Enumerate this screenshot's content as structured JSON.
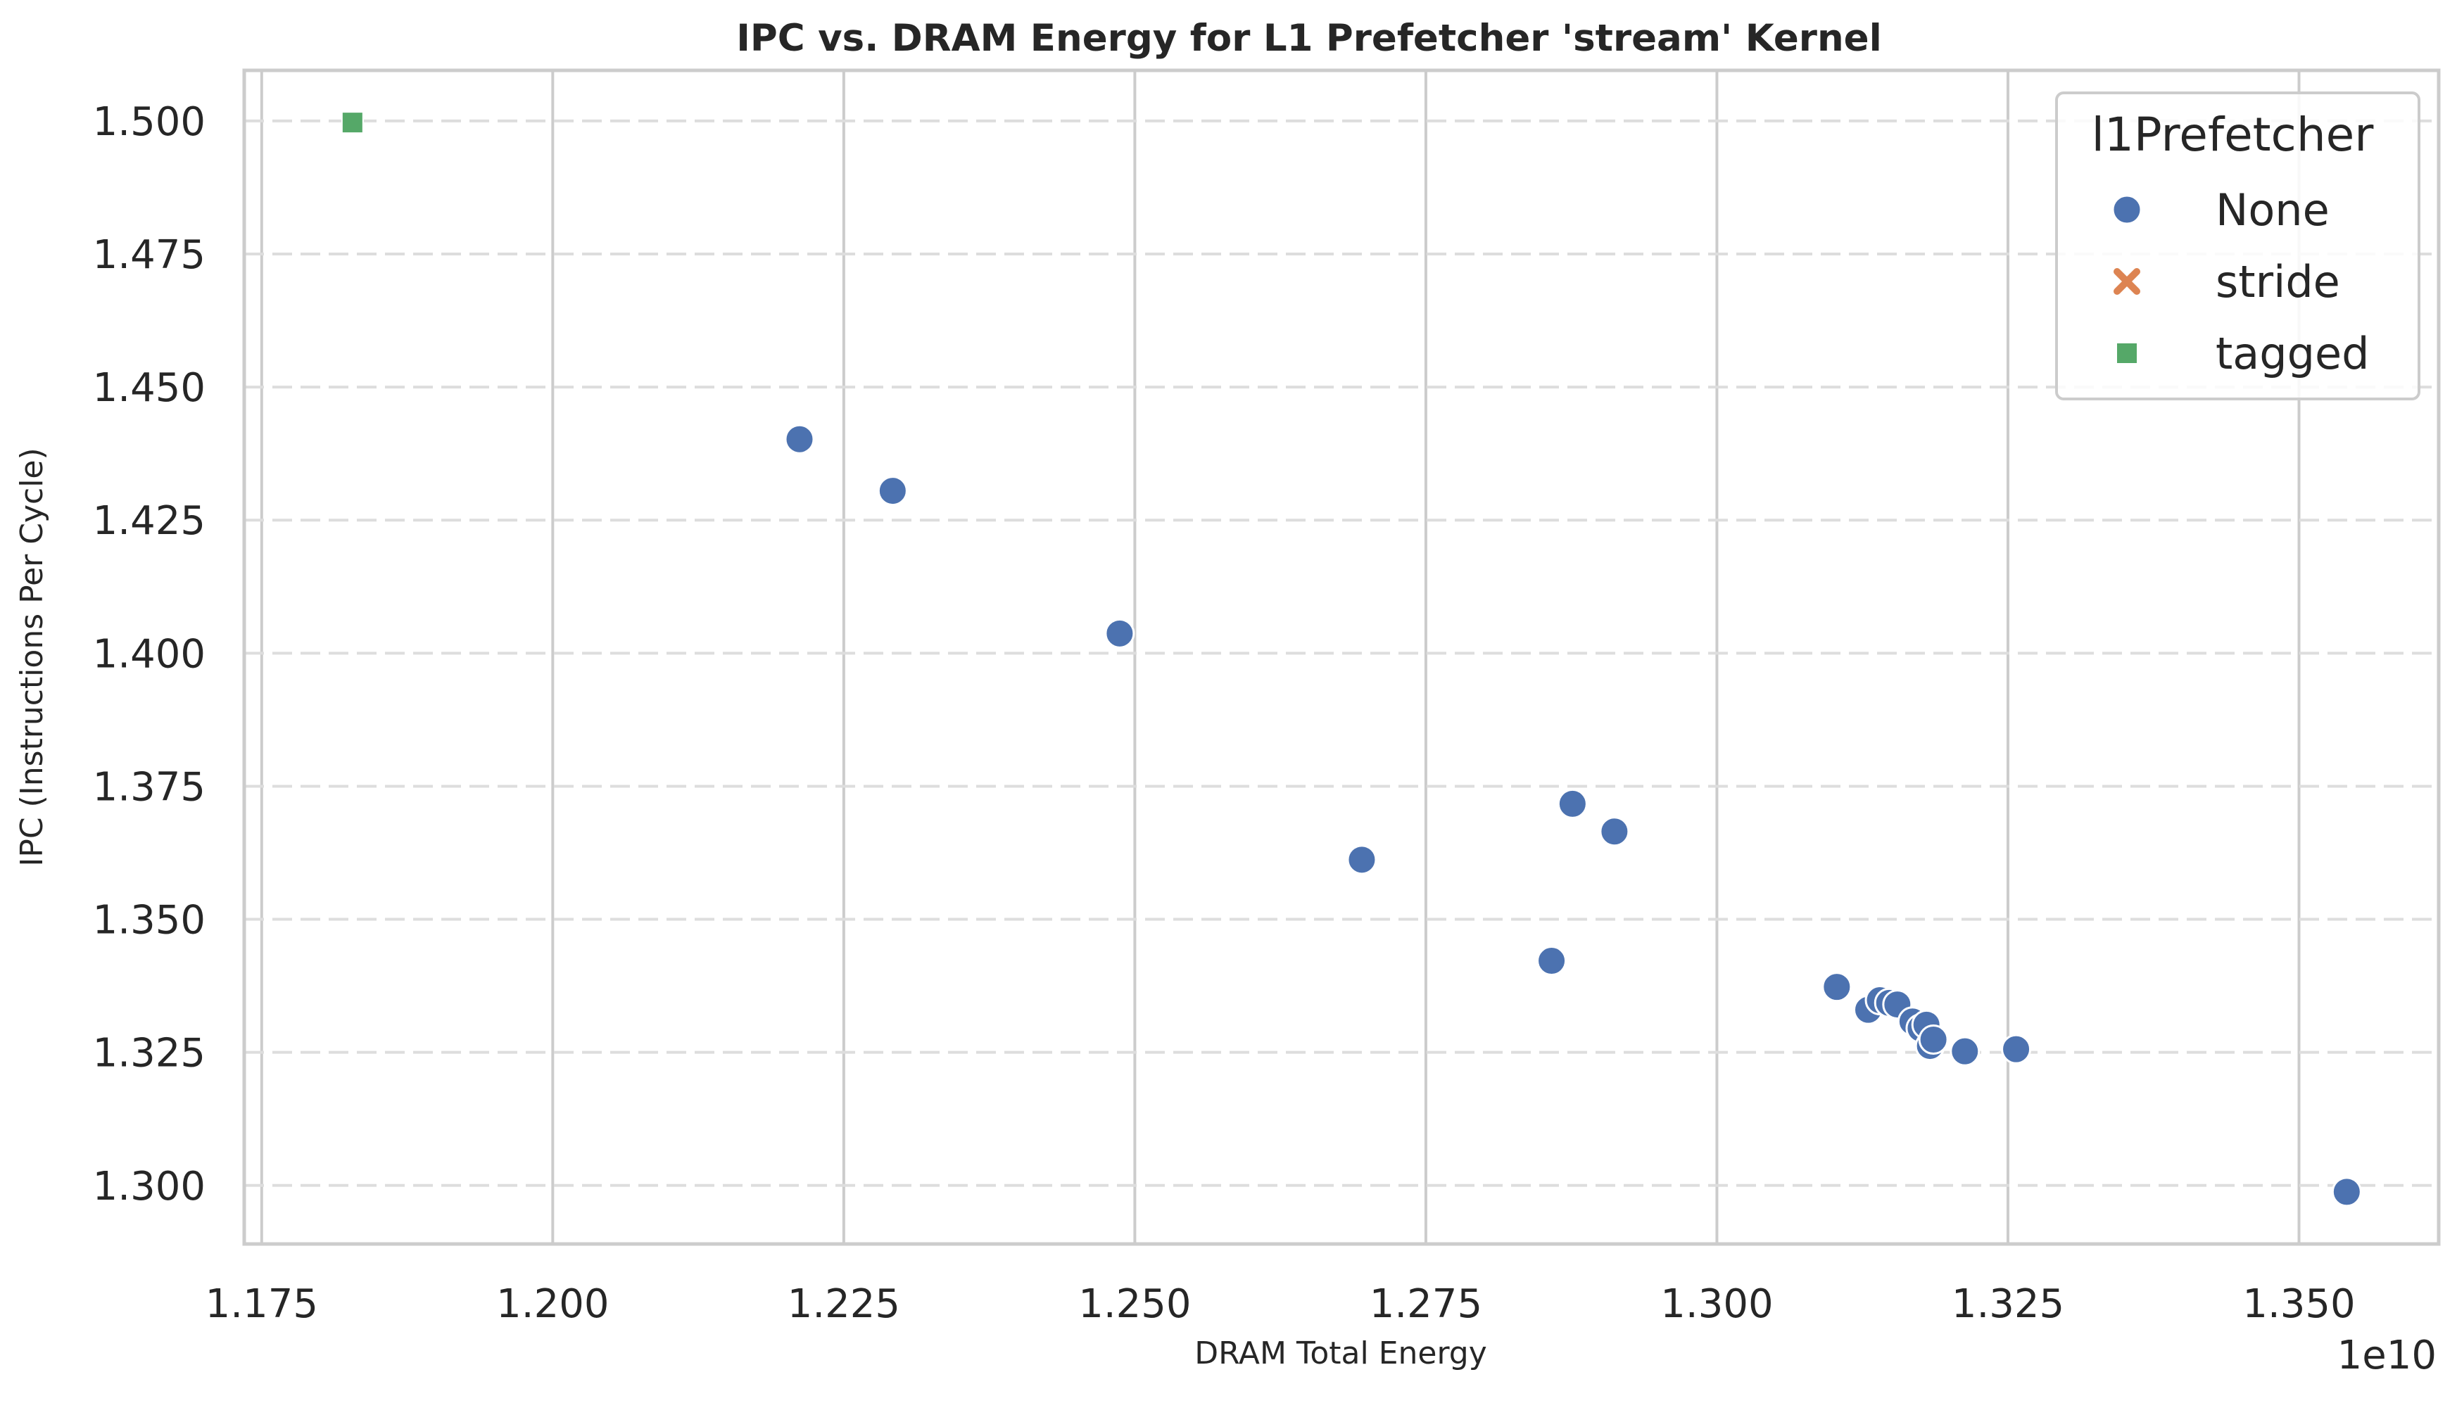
{
  "chart_data": {
    "type": "scatter",
    "title": "IPC vs. DRAM Energy for L1 Prefetcher 'stream' Kernel",
    "xlabel": "DRAM Total Energy",
    "ylabel": "IPC (Instructions Per Cycle)",
    "x_offset_label": "1e10",
    "x_scale": 10000000000,
    "xlim": [
      1.1735,
      1.362
    ],
    "ylim": [
      1.289,
      1.5095
    ],
    "x_ticks": [
      1.175,
      1.2,
      1.225,
      1.25,
      1.275,
      1.3,
      1.325,
      1.35
    ],
    "x_tick_labels": [
      "1.175",
      "1.200",
      "1.225",
      "1.250",
      "1.275",
      "1.300",
      "1.325",
      "1.350"
    ],
    "y_ticks": [
      1.3,
      1.325,
      1.35,
      1.375,
      1.4,
      1.425,
      1.45,
      1.475,
      1.5
    ],
    "y_tick_labels": [
      "1.300",
      "1.325",
      "1.350",
      "1.375",
      "1.400",
      "1.425",
      "1.450",
      "1.475",
      "1.500"
    ],
    "grid": true,
    "legend": {
      "title": "l1Prefetcher",
      "placement": "top-right"
    },
    "series": [
      {
        "name": "None",
        "marker": "circle",
        "color": "#4c72b0",
        "points": [
          [
            1.2212,
            1.4402
          ],
          [
            1.2292,
            1.4305
          ],
          [
            1.2487,
            1.4037
          ],
          [
            1.2695,
            1.3612
          ],
          [
            1.2858,
            1.3422
          ],
          [
            1.2876,
            1.3717
          ],
          [
            1.2912,
            1.3665
          ],
          [
            1.3103,
            1.3373
          ],
          [
            1.313,
            1.333
          ],
          [
            1.314,
            1.3348
          ],
          [
            1.3148,
            1.3343
          ],
          [
            1.3155,
            1.334
          ],
          [
            1.3168,
            1.3308
          ],
          [
            1.3175,
            1.3295
          ],
          [
            1.318,
            1.3302
          ],
          [
            1.3183,
            1.3262
          ],
          [
            1.3186,
            1.3274
          ],
          [
            1.3213,
            1.3252
          ],
          [
            1.3257,
            1.3256
          ],
          [
            1.3541,
            1.2988
          ]
        ]
      },
      {
        "name": "stride",
        "marker": "x",
        "color": "#dd8452",
        "points": []
      },
      {
        "name": "tagged",
        "marker": "square",
        "color": "#55a868",
        "points": [
          [
            1.1828,
            1.4997
          ]
        ]
      }
    ]
  }
}
